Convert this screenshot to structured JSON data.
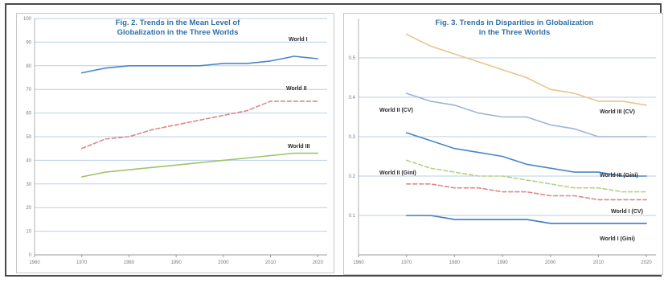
{
  "chart_data": [
    {
      "type": "line",
      "title_lines": [
        "Fig. 2. Trends in the Mean Level of",
        "Globalization in the Three Worlds"
      ],
      "x": [
        1970,
        1975,
        1980,
        1985,
        1990,
        1995,
        2000,
        2005,
        2010,
        2015,
        2020
      ],
      "xlim": [
        1960,
        2022
      ],
      "x_ticks": [
        1960,
        1970,
        1980,
        1990,
        2000,
        2010,
        2020
      ],
      "ylim": [
        0,
        100
      ],
      "y_ticks": [
        0,
        10,
        20,
        30,
        40,
        50,
        60,
        70,
        80,
        90,
        100
      ],
      "grid": true,
      "series": [
        {
          "name": "World I",
          "color": "#4a86c8",
          "dash": "solid",
          "values": [
            77,
            79,
            80,
            80,
            80,
            80,
            81,
            81,
            82,
            84,
            83
          ]
        },
        {
          "name": "World II",
          "color": "#d98a8a",
          "dash": "dashed",
          "values": [
            45,
            49,
            50,
            53,
            55,
            57,
            59,
            61,
            65,
            65,
            65
          ]
        },
        {
          "name": "World III",
          "color": "#9cc46a",
          "dash": "solid",
          "values": [
            33,
            35,
            36,
            37,
            38,
            39,
            40,
            41,
            42,
            43,
            43
          ]
        }
      ]
    },
    {
      "type": "line",
      "title_lines": [
        "Fig. 3. Trends in Disparities in Globalization",
        "in the Three Worlds"
      ],
      "x": [
        1970,
        1975,
        1980,
        1985,
        1990,
        1995,
        2000,
        2005,
        2010,
        2015,
        2020
      ],
      "xlim": [
        1960,
        2022
      ],
      "x_ticks": [
        1960,
        1970,
        1980,
        1990,
        2000,
        2010,
        2020
      ],
      "ylim": [
        0,
        0.6
      ],
      "y_ticks": [
        0.1,
        0.2,
        0.3,
        0.4,
        0.5
      ],
      "grid": true,
      "series": [
        {
          "name": "World III (CV)",
          "color": "#e8c48e",
          "dash": "solid",
          "values": [
            0.56,
            0.53,
            0.51,
            0.49,
            0.47,
            0.45,
            0.42,
            0.41,
            0.39,
            0.39,
            0.38
          ]
        },
        {
          "name": "World II (CV)",
          "color": "#9fb4d8",
          "dash": "solid",
          "values": [
            0.41,
            0.39,
            0.38,
            0.36,
            0.35,
            0.35,
            0.33,
            0.32,
            0.3,
            0.3,
            0.3
          ]
        },
        {
          "name": "World III (Gini)",
          "color": "#4a86c8",
          "dash": "solid",
          "values": [
            0.31,
            0.29,
            0.27,
            0.26,
            0.25,
            0.23,
            0.22,
            0.21,
            0.21,
            0.2,
            0.2
          ]
        },
        {
          "name": "World II (Gini)",
          "color": "#b7cf8a",
          "dash": "dashed",
          "values": [
            0.24,
            0.22,
            0.21,
            0.2,
            0.2,
            0.19,
            0.18,
            0.17,
            0.17,
            0.16,
            0.16
          ]
        },
        {
          "name": "World I (CV)",
          "color": "#d98a8a",
          "dash": "dashed",
          "values": [
            0.18,
            0.18,
            0.17,
            0.17,
            0.16,
            0.16,
            0.15,
            0.15,
            0.14,
            0.14,
            0.14
          ]
        },
        {
          "name": "World I (Gini)",
          "color": "#3f7cc0",
          "dash": "solid",
          "values": [
            0.1,
            0.1,
            0.09,
            0.09,
            0.09,
            0.09,
            0.08,
            0.08,
            0.08,
            0.08,
            0.08
          ]
        }
      ]
    }
  ]
}
